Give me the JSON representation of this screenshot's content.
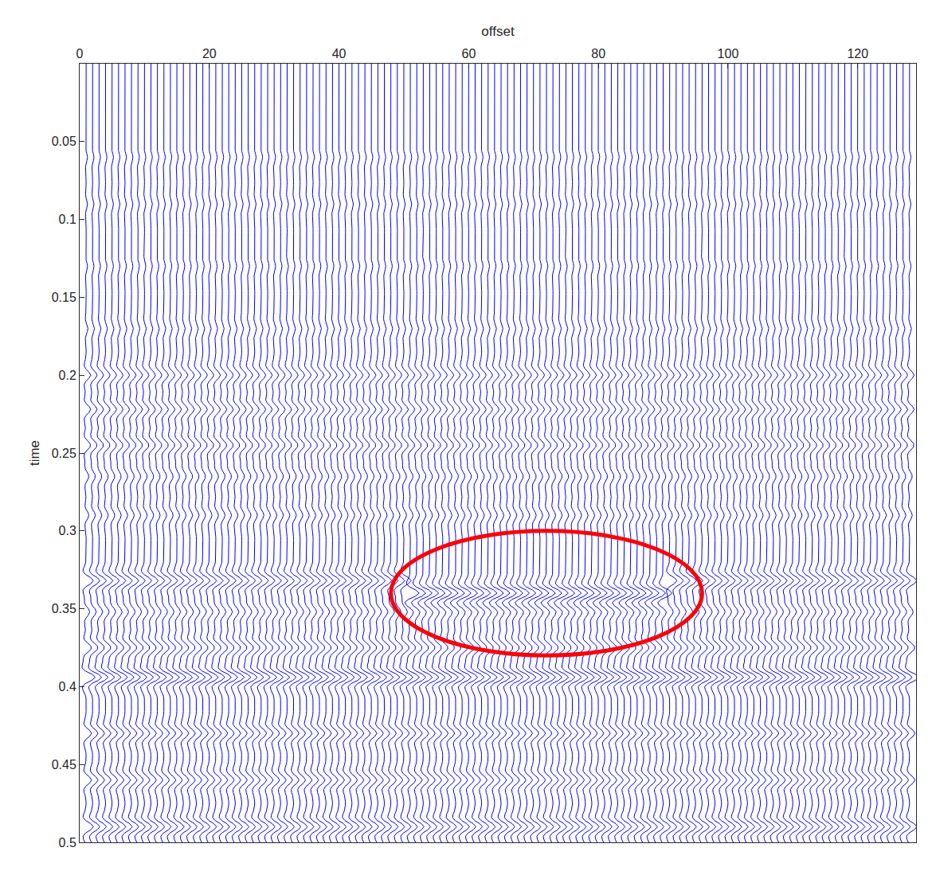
{
  "chart_data": {
    "type": "wiggle",
    "xlabel": "offset",
    "ylabel": "time",
    "xlim": [
      0,
      129
    ],
    "ylim": [
      0.5,
      0
    ],
    "xticks": [
      0,
      20,
      40,
      60,
      80,
      100,
      120
    ],
    "yticks": [
      0.05,
      0.1,
      0.15,
      0.2,
      0.25,
      0.3,
      0.35,
      0.4,
      0.45,
      0.5
    ],
    "color": "#0000ff",
    "grid": false,
    "trace_offsets": {
      "first": 1,
      "last": 128,
      "step": 1
    },
    "sample_interval": 0.002,
    "wavelet_frequency": 60,
    "events": [
      {
        "time": 0.06,
        "offsets": [
          1,
          128
        ],
        "amplitude": 0.15
      },
      {
        "time": 0.09,
        "offsets": [
          1,
          128
        ],
        "amplitude": 0.15
      },
      {
        "time": 0.13,
        "offsets": [
          1,
          128
        ],
        "amplitude": 0.15
      },
      {
        "time": 0.17,
        "offsets": [
          1,
          128
        ],
        "amplitude": 0.2
      },
      {
        "time": 0.2,
        "offsets": [
          1,
          128
        ],
        "amplitude": 0.5
      },
      {
        "time": 0.222,
        "offsets": [
          1,
          128
        ],
        "amplitude": 0.5
      },
      {
        "time": 0.245,
        "offsets": [
          1,
          128
        ],
        "amplitude": 0.5
      },
      {
        "time": 0.265,
        "offsets": [
          1,
          128
        ],
        "amplitude": 0.3
      },
      {
        "time": 0.29,
        "offsets": [
          1,
          128
        ],
        "amplitude": 0.3
      },
      {
        "time": 0.332,
        "offsets": [
          1,
          50
        ],
        "amplitude": 0.8
      },
      {
        "time": 0.34,
        "offsets": [
          51,
          90
        ],
        "amplitude": 1.0
      },
      {
        "time": 0.332,
        "offsets": [
          91,
          128
        ],
        "amplitude": 0.8
      },
      {
        "time": 0.352,
        "offsets": [
          1,
          128
        ],
        "amplitude": 0.4
      },
      {
        "time": 0.375,
        "offsets": [
          1,
          128
        ],
        "amplitude": 0.6
      },
      {
        "time": 0.394,
        "offsets": [
          1,
          128
        ],
        "amplitude": 1.0
      },
      {
        "time": 0.43,
        "offsets": [
          1,
          128
        ],
        "amplitude": 0.6
      },
      {
        "time": 0.46,
        "offsets": [
          1,
          128
        ],
        "amplitude": 0.6
      },
      {
        "time": 0.49,
        "offsets": [
          1,
          128
        ],
        "amplitude": 0.8
      }
    ],
    "highlight": {
      "x0": 48,
      "x1": 96,
      "y0": 0.3,
      "y1": 0.38,
      "color": "#ff0000"
    }
  }
}
